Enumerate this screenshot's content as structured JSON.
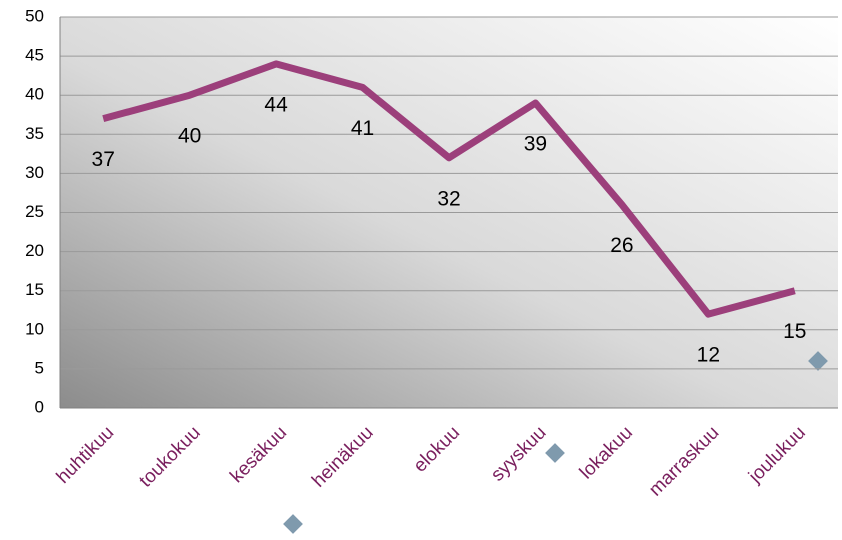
{
  "chart_data": {
    "type": "line",
    "categories": [
      "huhtikuu",
      "toukokuu",
      "kesäkuu",
      "heinäkuu",
      "elokuu",
      "syyskuu",
      "lokakuu",
      "marraskuu",
      "joulukuu"
    ],
    "series": [
      {
        "color": "#9c3f7b",
        "values": [
          37,
          40,
          44,
          41,
          32,
          39,
          26,
          12,
          15
        ]
      }
    ],
    "ylim": [
      0,
      50
    ],
    "yticks": [
      0,
      5,
      10,
      15,
      20,
      25,
      30,
      35,
      40,
      45,
      50
    ],
    "grid": true
  }
}
